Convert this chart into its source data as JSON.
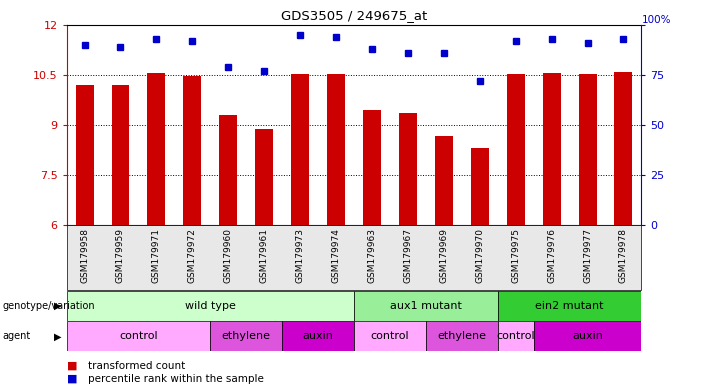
{
  "title": "GDS3505 / 249675_at",
  "samples": [
    "GSM179958",
    "GSM179959",
    "GSM179971",
    "GSM179972",
    "GSM179960",
    "GSM179961",
    "GSM179973",
    "GSM179974",
    "GSM179963",
    "GSM179967",
    "GSM179969",
    "GSM179970",
    "GSM179975",
    "GSM179976",
    "GSM179977",
    "GSM179978"
  ],
  "bar_values": [
    10.2,
    10.2,
    10.55,
    10.47,
    9.3,
    8.87,
    10.52,
    10.52,
    9.45,
    9.35,
    8.65,
    8.3,
    10.52,
    10.57,
    10.52,
    10.6
  ],
  "dot_values": [
    90,
    89,
    93,
    92,
    79,
    77,
    95,
    94,
    88,
    86,
    86,
    72,
    92,
    93,
    91,
    93
  ],
  "ylim_left": [
    6,
    12
  ],
  "ylim_right": [
    0,
    100
  ],
  "yticks_left": [
    6,
    7.5,
    9,
    10.5,
    12
  ],
  "ytick_labels_left": [
    "6",
    "7.5",
    "9",
    "10.5",
    "12"
  ],
  "yticks_right": [
    0,
    25,
    50,
    75,
    100
  ],
  "ytick_labels_right": [
    "0",
    "25",
    "50",
    "75",
    "100"
  ],
  "bar_color": "#cc0000",
  "dot_color": "#0000cc",
  "bar_width": 0.5,
  "genotype_groups": [
    {
      "label": "wild type",
      "start": 0,
      "end": 7,
      "color": "#ccffcc"
    },
    {
      "label": "aux1 mutant",
      "start": 8,
      "end": 11,
      "color": "#99ee99"
    },
    {
      "label": "ein2 mutant",
      "start": 12,
      "end": 15,
      "color": "#33cc33"
    }
  ],
  "agent_groups": [
    {
      "label": "control",
      "start": 0,
      "end": 3,
      "color": "#ffaaff"
    },
    {
      "label": "ethylene",
      "start": 4,
      "end": 5,
      "color": "#dd55dd"
    },
    {
      "label": "auxin",
      "start": 6,
      "end": 7,
      "color": "#cc00cc"
    },
    {
      "label": "control",
      "start": 8,
      "end": 9,
      "color": "#ffaaff"
    },
    {
      "label": "ethylene",
      "start": 10,
      "end": 11,
      "color": "#dd55dd"
    },
    {
      "label": "control",
      "start": 12,
      "end": 12,
      "color": "#ffaaff"
    },
    {
      "label": "auxin",
      "start": 13,
      "end": 15,
      "color": "#cc00cc"
    }
  ],
  "bar_color_legend": "#cc0000",
  "dot_color_legend": "#0000cc",
  "legend_label1": "transformed count",
  "legend_label2": "percentile rank within the sample",
  "label_genotype": "genotype/variation",
  "label_agent": "agent"
}
